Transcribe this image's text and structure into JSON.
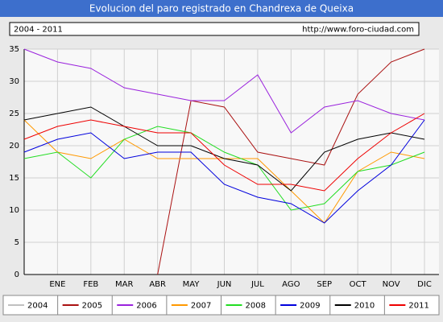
{
  "chart_data": {
    "type": "line",
    "title": "Evolucion del paro registrado en Chandrexa de Queixa",
    "subtitle": "2004 - 2011",
    "source": "http://www.foro-ciudad.com",
    "categories": [
      null,
      "ENE",
      "FEB",
      "MAR",
      "ABR",
      "MAY",
      "JUN",
      "JUL",
      "AGO",
      "SEP",
      "OCT",
      "NOV",
      "DIC"
    ],
    "ylim": [
      0,
      35
    ],
    "yticks": [
      0,
      5,
      10,
      15,
      20,
      25,
      30,
      35
    ],
    "grid": true,
    "series": [
      {
        "name": "2004",
        "color": "#c0c0c0",
        "values": [
          null,
          null,
          null,
          null,
          null,
          null,
          null,
          null,
          null,
          null,
          null,
          null,
          null
        ]
      },
      {
        "name": "2005",
        "color": "#aa1111",
        "values": [
          null,
          null,
          null,
          null,
          0,
          27,
          26,
          19,
          18,
          17,
          28,
          33,
          35
        ]
      },
      {
        "name": "2006",
        "color": "#9a22dd",
        "values": [
          35,
          33,
          32,
          29,
          28,
          27,
          27,
          31,
          22,
          26,
          27,
          25,
          24
        ]
      },
      {
        "name": "2007",
        "color": "#ff9900",
        "values": [
          24,
          19,
          18,
          21,
          18,
          18,
          18,
          18,
          13,
          8,
          16,
          19,
          18
        ]
      },
      {
        "name": "2008",
        "color": "#22dd22",
        "values": [
          18,
          19,
          15,
          21,
          23,
          22,
          19,
          17,
          10,
          11,
          16,
          17,
          19
        ]
      },
      {
        "name": "2009",
        "color": "#0000dd",
        "values": [
          19,
          21,
          22,
          18,
          19,
          19,
          14,
          12,
          11,
          8,
          13,
          17,
          24
        ]
      },
      {
        "name": "2010",
        "color": "#000000",
        "values": [
          24,
          25,
          26,
          23,
          20,
          20,
          18,
          17,
          13,
          19,
          21,
          22,
          21
        ]
      },
      {
        "name": "2011",
        "color": "#ee0000",
        "values": [
          21,
          23,
          24,
          23,
          22,
          22,
          17,
          14,
          14,
          13,
          18,
          22,
          25
        ]
      }
    ]
  }
}
